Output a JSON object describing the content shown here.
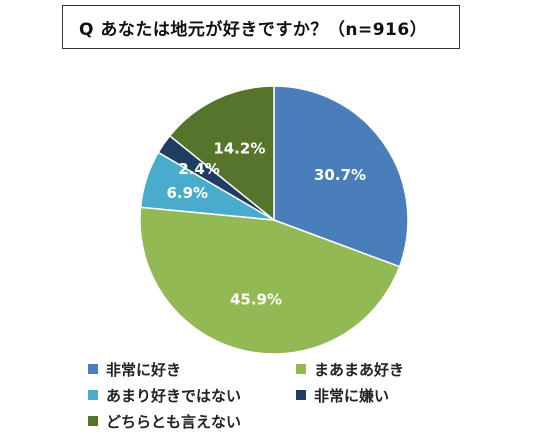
{
  "title": "Q あなたは地元が好きですか？（n=916）",
  "chart_data": {
    "type": "pie",
    "title": "Q あなたは地元が好きですか？（n=916）",
    "start_angle_deg": 0,
    "direction": "clockwise",
    "series": [
      {
        "name": "非常に好き",
        "value": 30.7,
        "label": "30.7%",
        "color": "#4a7ebb"
      },
      {
        "name": "まあまあ好き",
        "value": 45.9,
        "label": "45.9%",
        "color": "#92b954"
      },
      {
        "name": "あまり好きではない",
        "value": 6.9,
        "label": "6.9%",
        "color": "#4aaccc"
      },
      {
        "name": "非常に嫌い",
        "value": 2.4,
        "label": "2.4%",
        "color": "#1f3c63"
      },
      {
        "name": "どちらとも言えない",
        "value": 14.2,
        "label": "14.2%",
        "color": "#56742a"
      }
    ],
    "legend_position": "bottom"
  }
}
